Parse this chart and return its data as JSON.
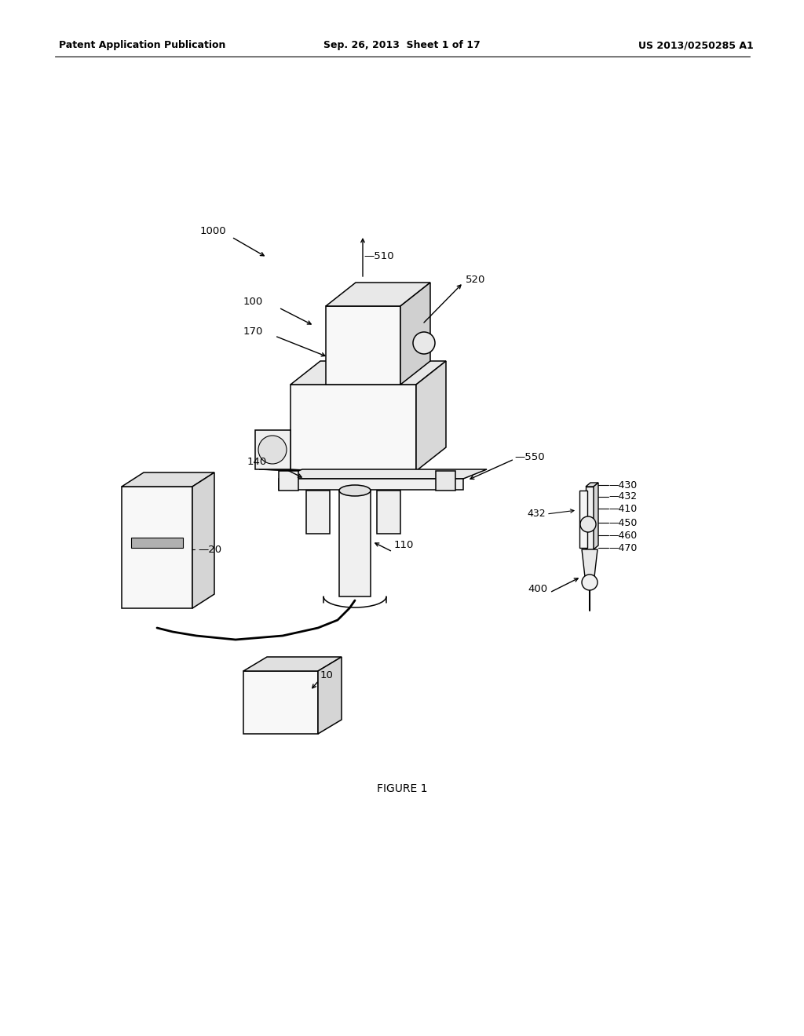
{
  "background_color": "#ffffff",
  "header_left": "Patent Application Publication",
  "header_center": "Sep. 26, 2013  Sheet 1 of 17",
  "header_right": "US 2013/0250285 A1",
  "figure_label": "FIGURE 1",
  "line_color": "#000000",
  "face_light": "#ffffff",
  "face_mid": "#eeeeee",
  "face_dark": "#d8d8d8"
}
